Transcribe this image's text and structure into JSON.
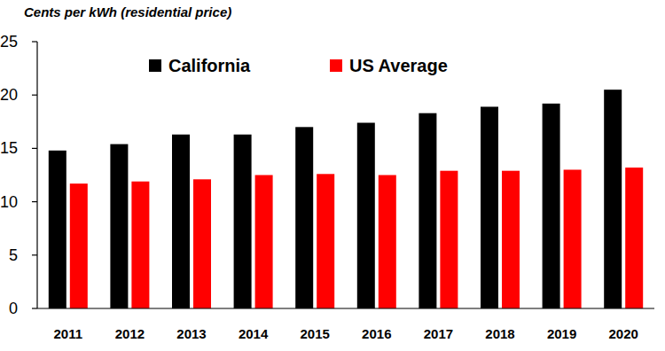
{
  "chart_data": {
    "type": "bar",
    "title": "Cents per kWh (residential price)",
    "categories": [
      "2011",
      "2012",
      "2013",
      "2014",
      "2015",
      "2016",
      "2017",
      "2018",
      "2019",
      "2020"
    ],
    "series": [
      {
        "name": "California",
        "color": "#000000",
        "values": [
          14.8,
          15.4,
          16.3,
          16.3,
          17.0,
          17.4,
          18.3,
          18.9,
          19.2,
          20.5
        ]
      },
      {
        "name": "US Average",
        "color": "#ff0000",
        "values": [
          11.7,
          11.9,
          12.1,
          12.5,
          12.6,
          12.5,
          12.9,
          12.9,
          13.0,
          13.2
        ]
      }
    ],
    "ylim": [
      0,
      25
    ],
    "yticks": [
      0,
      5,
      10,
      15,
      20,
      25
    ],
    "grid": false,
    "legend": "top"
  }
}
